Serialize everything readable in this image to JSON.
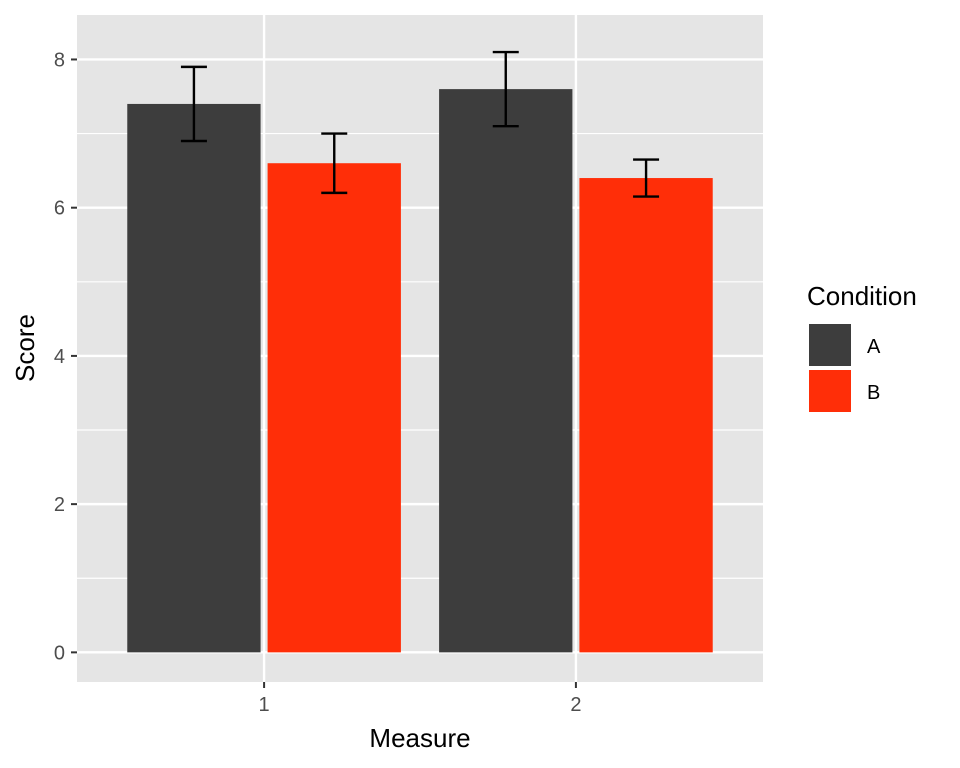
{
  "chart_data": {
    "type": "bar",
    "xlabel": "Measure",
    "ylabel": "Score",
    "categories": [
      "1",
      "2"
    ],
    "ylim": [
      -0.4,
      8.6
    ],
    "yticks": [
      0,
      2,
      4,
      6,
      8
    ],
    "grid": true,
    "legend": {
      "title": "Condition",
      "position": "right"
    },
    "series": [
      {
        "name": "A",
        "color": "#3d3d3d",
        "values": [
          7.4,
          7.6
        ],
        "error_low": [
          6.9,
          7.1
        ],
        "error_high": [
          7.9,
          8.1
        ]
      },
      {
        "name": "B",
        "color": "#ff2e08",
        "values": [
          6.6,
          6.4
        ],
        "error_low": [
          6.2,
          6.15
        ],
        "error_high": [
          7.0,
          6.65
        ]
      }
    ]
  }
}
